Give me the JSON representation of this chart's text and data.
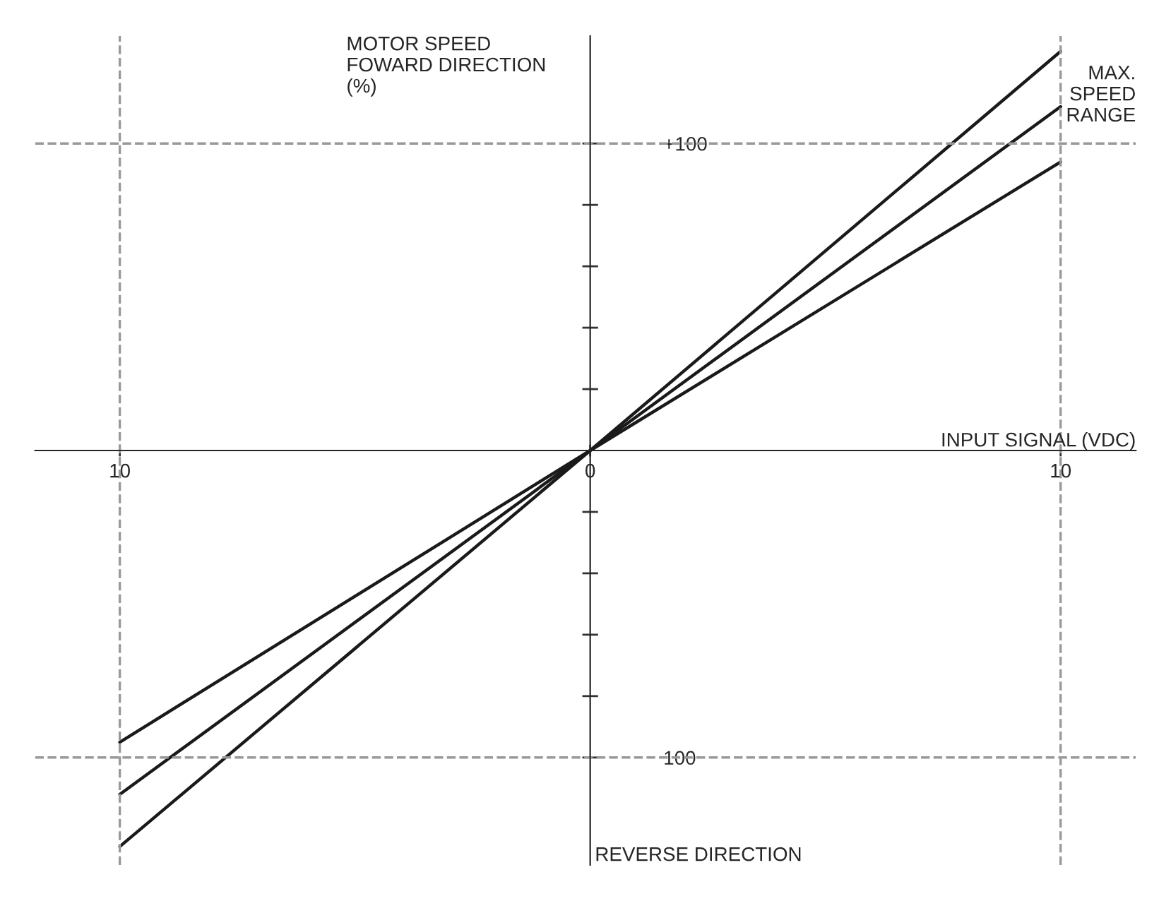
{
  "chart_data": {
    "type": "line",
    "xlabel": "INPUT SIGNAL (VDC)",
    "ylabel": "MOTOR SPEED\nFOWARD DIRECTION\n(%)",
    "annotations": [
      "MAX.\nSPEED\nRANGE",
      "REVERSE DIRECTION"
    ],
    "series": [
      {
        "x": [
          -10,
          0,
          10
        ],
        "values": [
          -129,
          0,
          130
        ],
        "color": "#1a1a1a"
      },
      {
        "x": [
          -10,
          0,
          10
        ],
        "values": [
          -112,
          0,
          112
        ],
        "color": "#1a1a1a"
      },
      {
        "x": [
          -10,
          0,
          10
        ],
        "values": [
          -95,
          0,
          94
        ],
        "color": "#1a1a1a"
      }
    ],
    "xlim": [
      -11.8,
      11.6
    ],
    "ylim": [
      -135,
      135
    ],
    "xticks": [
      {
        "value": -10,
        "label": "10"
      },
      0,
      10
    ],
    "yticks": [
      {
        "value": -100,
        "label": "100"
      },
      {
        "value": -80,
        "label": null
      },
      {
        "value": -60,
        "label": null
      },
      {
        "value": -40,
        "label": null
      },
      {
        "value": -20,
        "label": null
      },
      {
        "value": 20,
        "label": null
      },
      {
        "value": 40,
        "label": null
      },
      {
        "value": 60,
        "label": null
      },
      {
        "value": 80,
        "label": null
      },
      {
        "value": 100,
        "label": "+100"
      }
    ],
    "ref_lines": [
      {
        "axis": "x",
        "value": -10,
        "color": "#999999",
        "line_style": "dashed"
      },
      {
        "axis": "x",
        "value": 10,
        "color": "#999999",
        "line_style": "dashed"
      },
      {
        "axis": "y",
        "value": 100,
        "color": "#999999",
        "line_style": "dashed"
      },
      {
        "axis": "y",
        "value": -100,
        "color": "#999999",
        "line_style": "dashed"
      }
    ],
    "grid": false,
    "legend": false,
    "marker": "none",
    "line_style": "solid"
  }
}
